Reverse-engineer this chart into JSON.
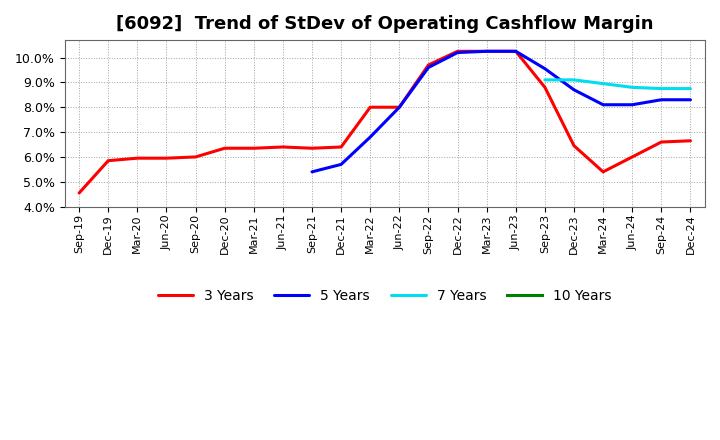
{
  "title": "[6092]  Trend of StDev of Operating Cashflow Margin",
  "title_fontsize": 13,
  "ylim": [
    0.04,
    0.107
  ],
  "yticks": [
    0.04,
    0.05,
    0.06,
    0.07,
    0.08,
    0.09,
    0.1
  ],
  "background_color": "#ffffff",
  "grid_color": "#999999",
  "xtick_labels": [
    "Sep-19",
    "Dec-19",
    "Mar-20",
    "Jun-20",
    "Sep-20",
    "Dec-20",
    "Mar-21",
    "Jun-21",
    "Sep-21",
    "Dec-21",
    "Mar-22",
    "Jun-22",
    "Sep-22",
    "Dec-22",
    "Mar-23",
    "Jun-23",
    "Sep-23",
    "Dec-23",
    "Mar-24",
    "Jun-24",
    "Sep-24",
    "Dec-24"
  ],
  "series": {
    "3 Years": {
      "color": "#ff0000",
      "x": [
        0,
        1,
        2,
        3,
        4,
        5,
        6,
        7,
        8,
        9,
        10,
        11,
        12,
        13,
        14,
        15,
        16,
        17,
        18,
        19,
        20,
        21
      ],
      "y": [
        0.0455,
        0.0585,
        0.0595,
        0.0595,
        0.06,
        0.0635,
        0.0635,
        0.064,
        0.0635,
        0.064,
        0.08,
        0.08,
        0.097,
        0.1025,
        0.1025,
        0.1025,
        0.088,
        0.0645,
        0.054,
        0.06,
        0.066,
        0.0665
      ]
    },
    "5 Years": {
      "color": "#0000ff",
      "x": [
        8,
        9,
        10,
        11,
        12,
        13,
        14,
        15,
        16,
        17,
        18,
        19,
        20,
        21
      ],
      "y": [
        0.054,
        0.057,
        0.068,
        0.08,
        0.096,
        0.102,
        0.1025,
        0.1025,
        0.0955,
        0.087,
        0.081,
        0.081,
        0.083,
        0.083
      ]
    },
    "7 Years": {
      "color": "#00ddee",
      "x": [
        16,
        17,
        18,
        19,
        20,
        21
      ],
      "y": [
        0.091,
        0.091,
        0.0895,
        0.088,
        0.0875,
        0.0875
      ]
    },
    "10 Years": {
      "color": "#008000",
      "x": [],
      "y": []
    }
  },
  "legend_labels": [
    "3 Years",
    "5 Years",
    "7 Years",
    "10 Years"
  ],
  "legend_colors": [
    "#ff0000",
    "#0000ff",
    "#00ddee",
    "#008000"
  ]
}
